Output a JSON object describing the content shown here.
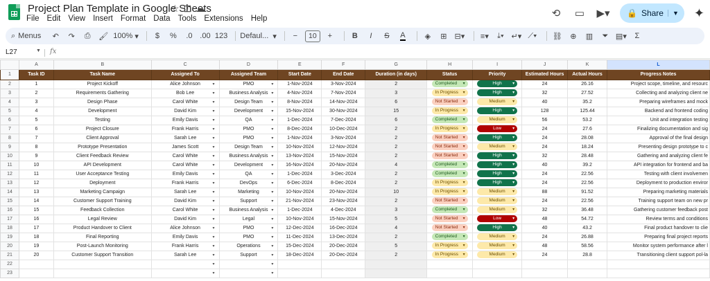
{
  "app": {
    "title": "Project Plan Template in Google Sheets",
    "menu": [
      "File",
      "Edit",
      "View",
      "Insert",
      "Format",
      "Data",
      "Tools",
      "Extensions",
      "Help"
    ],
    "share_label": "Share"
  },
  "toolbar": {
    "search_label": "Menus",
    "zoom": "100%",
    "currency": "$",
    "percent": "%",
    "dec_decrease": ".0",
    "dec_increase": ".00",
    "number_format": "123",
    "font": "Defaul...",
    "font_size": "10",
    "bold": "B",
    "italic": "I",
    "strike": "S",
    "text_color": "A",
    "sum": "Σ"
  },
  "formula_bar": {
    "cell_ref": "L27",
    "fx": "fx"
  },
  "grid": {
    "columns": [
      "A",
      "B",
      "C",
      "D",
      "E",
      "F",
      "G",
      "H",
      "I",
      "J",
      "K",
      "L"
    ],
    "selected_column": "L",
    "headers": [
      "Task ID",
      "Task Name",
      "Assigned To",
      "Assigned Team",
      "Start Date",
      "End Date",
      "Duration (in days)",
      "Status",
      "Priority",
      "Estimated Hours",
      "Actual Hours",
      "Progress Notes"
    ],
    "rows": [
      [
        "1",
        "Project Kickoff",
        "Alice Johnson",
        "PMO",
        "1-Nov-2024",
        "3-Nov-2024",
        "2",
        "Completed",
        "High",
        "24",
        "26.16",
        "Project scope, timeline, and resourc"
      ],
      [
        "2",
        "Requirements Gathering",
        "Bob Lee",
        "Business Analysis",
        "4-Nov-2024",
        "7-Nov-2024",
        "3",
        "In Progress",
        "High",
        "32",
        "27.52",
        "Collecting and analyzing client ne"
      ],
      [
        "3",
        "Design Phase",
        "Carol White",
        "Design Team",
        "8-Nov-2024",
        "14-Nov-2024",
        "6",
        "Not Started",
        "Medium",
        "40",
        "35.2",
        "Preparing wireframes and mock"
      ],
      [
        "4",
        "Development",
        "David Kim",
        "Development",
        "15-Nov-2024",
        "30-Nov-2024",
        "15",
        "In Progress",
        "High",
        "128",
        "125.44",
        "Backend and frontend coding"
      ],
      [
        "5",
        "Testing",
        "Emily Davis",
        "QA",
        "1-Dec-2024",
        "7-Dec-2024",
        "6",
        "Completed",
        "Medium",
        "56",
        "53.2",
        "Unit and integration testing"
      ],
      [
        "6",
        "Project Closure",
        "Frank Harris",
        "PMO",
        "8-Dec-2024",
        "10-Dec-2024",
        "2",
        "In Progress",
        "Low",
        "24",
        "27.6",
        "Finalizing documentation and sig"
      ],
      [
        "7",
        "Client Approval",
        "Sarah Lee",
        "PMO",
        "1-Nov-2024",
        "3-Nov-2024",
        "2",
        "Not Started",
        "High",
        "24",
        "28.08",
        "Approval of the final design"
      ],
      [
        "8",
        "Prototype Presentation",
        "James Scott",
        "Design Team",
        "10-Nov-2024",
        "12-Nov-2024",
        "2",
        "Not Started",
        "Medium",
        "24",
        "18.24",
        "Presenting design prototype to c"
      ],
      [
        "9",
        "Client Feedback Review",
        "Carol White",
        "Business Analysis",
        "13-Nov-2024",
        "15-Nov-2024",
        "2",
        "Not Started",
        "High",
        "32",
        "28.48",
        "Gathering and analyzing client fe"
      ],
      [
        "10",
        "API Development",
        "Carol White",
        "Development",
        "16-Nov-2024",
        "20-Nov-2024",
        "4",
        "Completed",
        "High",
        "40",
        "39.2",
        "API integration for frontend and ba"
      ],
      [
        "11",
        "User Acceptance Testing",
        "Emily Davis",
        "QA",
        "1-Dec-2024",
        "3-Dec-2024",
        "2",
        "Completed",
        "High",
        "24",
        "22.56",
        "Testing with client involvemen"
      ],
      [
        "12",
        "Deployment",
        "Frank Harris",
        "DevOps",
        "6-Dec-2024",
        "8-Dec-2024",
        "2",
        "In Progress",
        "High",
        "24",
        "22.56",
        "Deployment to production enviror"
      ],
      [
        "13",
        "Marketing Campaign",
        "Sarah Lee",
        "Marketing",
        "10-Nov-2024",
        "20-Nov-2024",
        "10",
        "In Progress",
        "Medium",
        "88",
        "91.52",
        "Preparing marketing materials"
      ],
      [
        "14",
        "Customer Support Training",
        "David Kim",
        "Support",
        "21-Nov-2024",
        "23-Nov-2024",
        "2",
        "Not Started",
        "Medium",
        "24",
        "22.56",
        "Training support team on new pr"
      ],
      [
        "15",
        "Feedback Collection",
        "Carol White",
        "Business Analysis",
        "1-Dec-2024",
        "4-Dec-2024",
        "3",
        "Completed",
        "Medium",
        "32",
        "36.48",
        "Gathering customer feedback post"
      ],
      [
        "16",
        "Legal Review",
        "David Kim",
        "Legal",
        "10-Nov-2024",
        "15-Nov-2024",
        "5",
        "Not Started",
        "Low",
        "48",
        "54.72",
        "Review terms and conditions"
      ],
      [
        "17",
        "Product Handover to Client",
        "Alice Johnson",
        "PMO",
        "12-Dec-2024",
        "16-Dec-2024",
        "4",
        "Not Started",
        "High",
        "40",
        "43.2",
        "Final product handover to clie"
      ],
      [
        "18",
        "Final Reporting",
        "Emily Davis",
        "PMO",
        "11-Dec-2024",
        "13-Dec-2024",
        "2",
        "Completed",
        "Medium",
        "24",
        "26.88",
        "Preparing final project reports"
      ],
      [
        "19",
        "Post-Launch Monitoring",
        "Frank Harris",
        "Operations",
        "15-Dec-2024",
        "20-Dec-2024",
        "5",
        "In Progress",
        "Medium",
        "48",
        "58.56",
        "Monitor system performance after l"
      ],
      [
        "20",
        "Customer Support Transition",
        "Sarah Lee",
        "Support",
        "18-Dec-2024",
        "20-Dec-2024",
        "2",
        "In Progress",
        "Medium",
        "24",
        "28.8",
        "Transitioning client support pol-la"
      ]
    ],
    "status_colors": {
      "Completed": {
        "bg": "#c5e8b7",
        "fg": "#1e5a1e"
      },
      "In Progress": {
        "bg": "#fde9a9",
        "fg": "#6b4e00"
      },
      "Not Started": {
        "bg": "#fbd0c0",
        "fg": "#8a2e10"
      }
    },
    "priority_colors": {
      "High": {
        "bg": "#11734b",
        "fg": "#ffffff"
      },
      "Medium": {
        "bg": "#fde9a9",
        "fg": "#6b4e00"
      },
      "Low": {
        "bg": "#b10202",
        "fg": "#ffffff"
      }
    }
  }
}
